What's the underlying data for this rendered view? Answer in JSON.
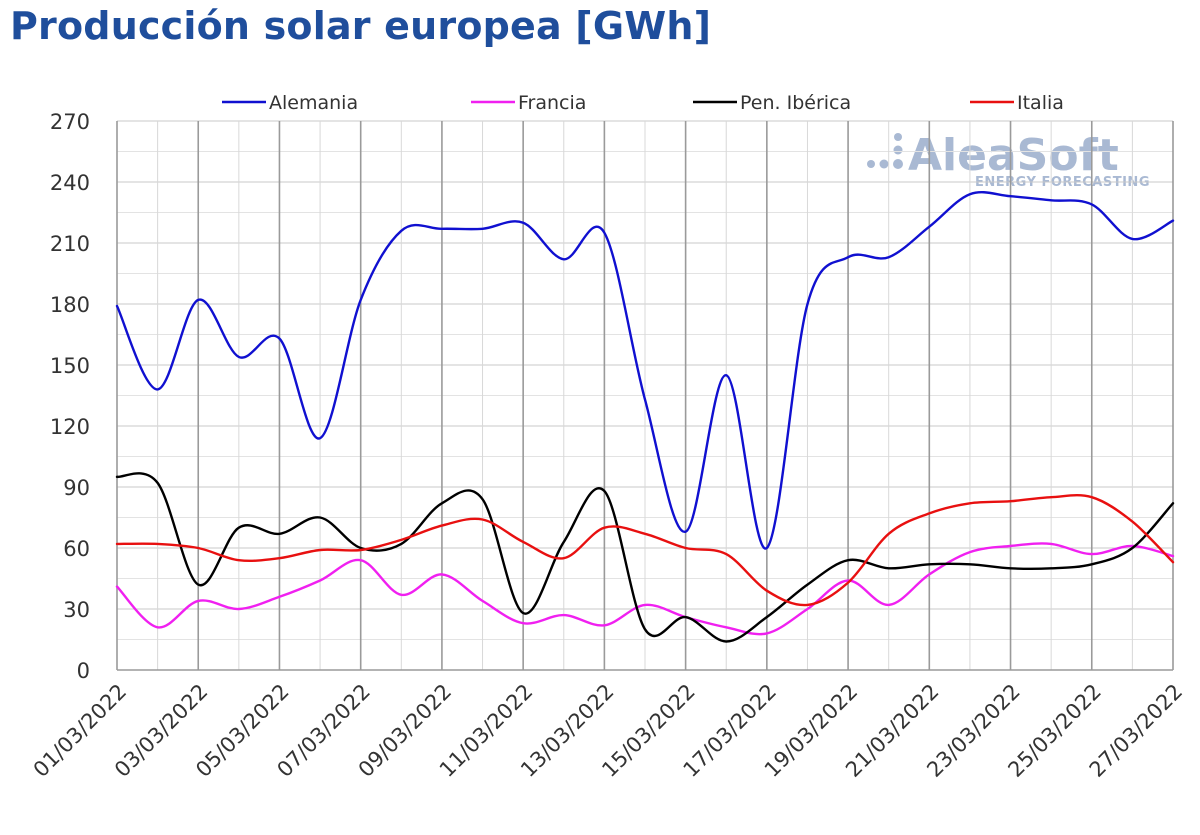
{
  "title": "Producción solar europea [GWh]",
  "watermark": {
    "brand": "AleaSoft",
    "tagline": "ENERGY FORECASTING",
    "color": "#a9b9d3"
  },
  "chart_data": {
    "type": "line",
    "title": "Producción solar europea [GWh]",
    "ylim": [
      0,
      270
    ],
    "yticks": [
      0,
      30,
      60,
      90,
      120,
      150,
      180,
      210,
      240,
      270
    ],
    "grid": true,
    "legend_position": "top",
    "x": [
      "01/03/2022",
      "02/03/2022",
      "03/03/2022",
      "04/03/2022",
      "05/03/2022",
      "06/03/2022",
      "07/03/2022",
      "08/03/2022",
      "09/03/2022",
      "10/03/2022",
      "11/03/2022",
      "12/03/2022",
      "13/03/2022",
      "14/03/2022",
      "15/03/2022",
      "16/03/2022",
      "17/03/2022",
      "18/03/2022",
      "19/03/2022",
      "20/03/2022",
      "21/03/2022",
      "22/03/2022",
      "23/03/2022",
      "24/03/2022",
      "25/03/2022",
      "26/03/2022",
      "27/03/2022"
    ],
    "xticks": [
      "01/03/2022",
      "03/03/2022",
      "05/03/2022",
      "07/03/2022",
      "09/03/2022",
      "11/03/2022",
      "13/03/2022",
      "15/03/2022",
      "17/03/2022",
      "19/03/2022",
      "21/03/2022",
      "23/03/2022",
      "25/03/2022",
      "27/03/2022"
    ],
    "series": [
      {
        "name": "Alemania",
        "color": "#1010d0",
        "values": [
          179,
          138,
          182,
          154,
          163,
          114,
          182,
          216,
          217,
          217,
          220,
          202,
          215,
          133,
          68,
          145,
          60,
          180,
          203,
          203,
          218,
          234,
          233,
          231,
          229,
          212,
          221
        ]
      },
      {
        "name": "Francia",
        "color": "#f020f0",
        "values": [
          41,
          21,
          34,
          30,
          36,
          44,
          54,
          37,
          47,
          34,
          23,
          27,
          22,
          32,
          26,
          21,
          18,
          30,
          44,
          32,
          47,
          58,
          61,
          62,
          57,
          61,
          56
        ]
      },
      {
        "name": "Pen. Ibérica",
        "color": "#000000",
        "values": [
          95,
          92,
          42,
          70,
          67,
          75,
          60,
          62,
          82,
          84,
          28,
          63,
          88,
          20,
          26,
          14,
          26,
          42,
          54,
          50,
          52,
          52,
          50,
          50,
          52,
          60,
          82
        ]
      },
      {
        "name": "Italia",
        "color": "#e81010",
        "values": [
          62,
          62,
          60,
          54,
          55,
          59,
          59,
          64,
          71,
          74,
          63,
          55,
          70,
          67,
          60,
          57,
          39,
          32,
          43,
          67,
          77,
          82,
          83,
          85,
          85,
          73,
          53
        ]
      }
    ]
  }
}
